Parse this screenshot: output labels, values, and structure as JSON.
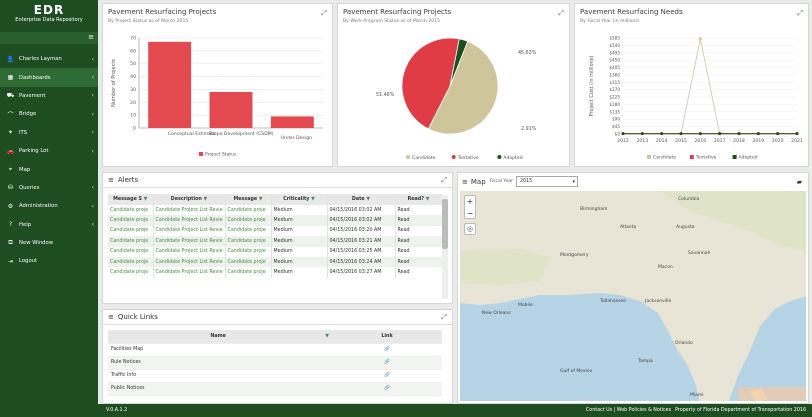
{
  "brand": {
    "title": "EDR",
    "subtitle": "Enterprise Data Repository"
  },
  "sidebar": {
    "menu_icon": "≡",
    "items": [
      {
        "label": "Charles Layman",
        "icon": "user-icon",
        "glyph": "👤",
        "arrow": "‹"
      },
      {
        "label": "Dashboards",
        "icon": "dashboard-icon",
        "glyph": "▦",
        "arrow": "‹"
      },
      {
        "label": "Pavement",
        "icon": "road-icon",
        "glyph": "⛟",
        "arrow": "‹"
      },
      {
        "label": "Bridge",
        "icon": "bridge-icon",
        "glyph": "⌒",
        "arrow": "‹"
      },
      {
        "label": "ITS",
        "icon": "traffic-light-icon",
        "glyph": "✦",
        "arrow": "‹"
      },
      {
        "label": "Parking Lot",
        "icon": "car-icon",
        "glyph": "🚗",
        "arrow": "‹"
      },
      {
        "label": "Map",
        "icon": "map-marker-icon",
        "glyph": "⌖",
        "arrow": ""
      },
      {
        "label": "Queries",
        "icon": "database-icon",
        "glyph": "⛁",
        "arrow": "‹"
      },
      {
        "label": "Administration",
        "icon": "gear-icon",
        "glyph": "⚙",
        "arrow": "‹"
      },
      {
        "label": "Help",
        "icon": "question-icon",
        "glyph": "?",
        "arrow": "‹"
      },
      {
        "label": "New Window",
        "icon": "window-icon",
        "glyph": "⧉",
        "arrow": ""
      },
      {
        "label": "Logout",
        "icon": "logout-icon",
        "glyph": "⇥",
        "arrow": ""
      }
    ]
  },
  "panels": {
    "bar": {
      "title": "Pavement Resurfacing Projects",
      "subtitle": "By Project Status as of March 2015"
    },
    "pie": {
      "title": "Pavement Resurfacing Projects",
      "subtitle": "By Work Program Status as of March 2015"
    },
    "line": {
      "title": "Pavement Resurfacing Needs",
      "subtitle": "By Fiscal Year (in millions)"
    },
    "expand_glyph": "⤢"
  },
  "chart_data": [
    {
      "type": "bar",
      "categories": [
        "Conceptual Estimate",
        "Scope Development (CSDM)",
        "Under Design"
      ],
      "values": [
        67,
        28,
        9
      ],
      "ylabel": "Number of Projects",
      "ylim": [
        0,
        70
      ],
      "yticks": [
        0,
        10,
        20,
        30,
        40,
        50,
        60,
        70
      ],
      "legend": [
        "Project Status"
      ],
      "color": "#e24a4f",
      "legend_placement": "bottom"
    },
    {
      "type": "pie",
      "series": [
        {
          "name": "Candidate",
          "value": 51.46,
          "label": "51.46%",
          "color": "#cfc59a"
        },
        {
          "name": "Tentative",
          "value": 45.63,
          "label": "45.63%",
          "color": "#e03c45"
        },
        {
          "name": "Adopted",
          "value": 2.91,
          "label": "2.91%",
          "color": "#1e4d22"
        }
      ],
      "legend_placement": "bottom"
    },
    {
      "type": "line",
      "x": [
        2012,
        2013,
        2014,
        2015,
        2016,
        2017,
        2018,
        2019,
        2020,
        2021
      ],
      "ylabel": "Project Cost (in millions)",
      "ylim": [
        0,
        600
      ],
      "yticks": [
        "$0",
        "$45",
        "$90",
        "$135",
        "$180",
        "$225",
        "$270",
        "$315",
        "$360",
        "$405",
        "$450",
        "$495",
        "$540",
        "$585"
      ],
      "series": [
        {
          "name": "Candidate",
          "color": "#cfc59a",
          "values": [
            2,
            2,
            2,
            2,
            596,
            2,
            2,
            2,
            2,
            2
          ]
        },
        {
          "name": "Tentative",
          "color": "#e03c45",
          "values": [
            2,
            2,
            2,
            2,
            2,
            2,
            2,
            2,
            2,
            2
          ]
        },
        {
          "name": "Adopted",
          "color": "#1e4d22",
          "values": [
            2,
            2,
            2,
            2,
            2,
            2,
            2,
            2,
            2,
            2
          ]
        }
      ],
      "legend_placement": "bottom"
    }
  ],
  "alerts": {
    "title": "Alerts",
    "columns": [
      "Message S",
      "Description",
      "Message",
      "Criticality",
      "Date",
      "Read?"
    ],
    "rows": [
      [
        "Candidate proje",
        "Candidate Project List Revie",
        "Candidate proje",
        "Medium",
        "04/15/2016 03:02 AM",
        "Read"
      ],
      [
        "Candidate proje",
        "Candidate Project List Revie",
        "Candidate proje",
        "Medium",
        "04/15/2016 03:02 AM",
        "Read"
      ],
      [
        "Candidate proje",
        "Candidate Project List Revie",
        "Candidate proje",
        "Medium",
        "04/15/2016 03:20 AM",
        "Read"
      ],
      [
        "Candidate proje",
        "Candidate Project List Revie",
        "Candidate proje",
        "Medium",
        "04/15/2016 03:21 AM",
        "Read"
      ],
      [
        "Candidate proje",
        "Candidate Project List Revie",
        "Candidate proje",
        "Medium",
        "04/15/2016 03:25 AM",
        "Read"
      ],
      [
        "Candidate proje",
        "Candidate Project List Revie",
        "Candidate proje",
        "Medium",
        "04/15/2016 03:24 AM",
        "Read"
      ],
      [
        "Candidate proje",
        "Candidate Project List Revie",
        "Candidate proje",
        "Medium",
        "04/15/2016 03:27 AM",
        "Read"
      ]
    ]
  },
  "quicklinks": {
    "title": "Quick Links",
    "columns": [
      "Name",
      "Link"
    ],
    "rows": [
      {
        "name": "Facilities Map"
      },
      {
        "name": "Rule Notices"
      },
      {
        "name": "Traffic Info"
      },
      {
        "name": "Public Notices"
      }
    ],
    "link_glyph": "🔗"
  },
  "map": {
    "title": "Map",
    "fiscal_label": "Fiscal Year",
    "fiscal_value": "2015",
    "zoom_in": "+",
    "zoom_out": "−",
    "places": [
      "Columbia",
      "Birmingham",
      "Atlanta",
      "Augusta",
      "Savannah",
      "Montgomery",
      "Macon",
      "Tallahassee",
      "Jacksonville",
      "Orlando",
      "Tampa",
      "Miami",
      "New Orleans",
      "Gulf of Mexico",
      "Mobile"
    ]
  },
  "footer": {
    "version": "V.0.A.1.2",
    "links": "Contact Us | Web Policies & Notices",
    "copyright": "Property of Florida Department of Transportation 2016"
  }
}
